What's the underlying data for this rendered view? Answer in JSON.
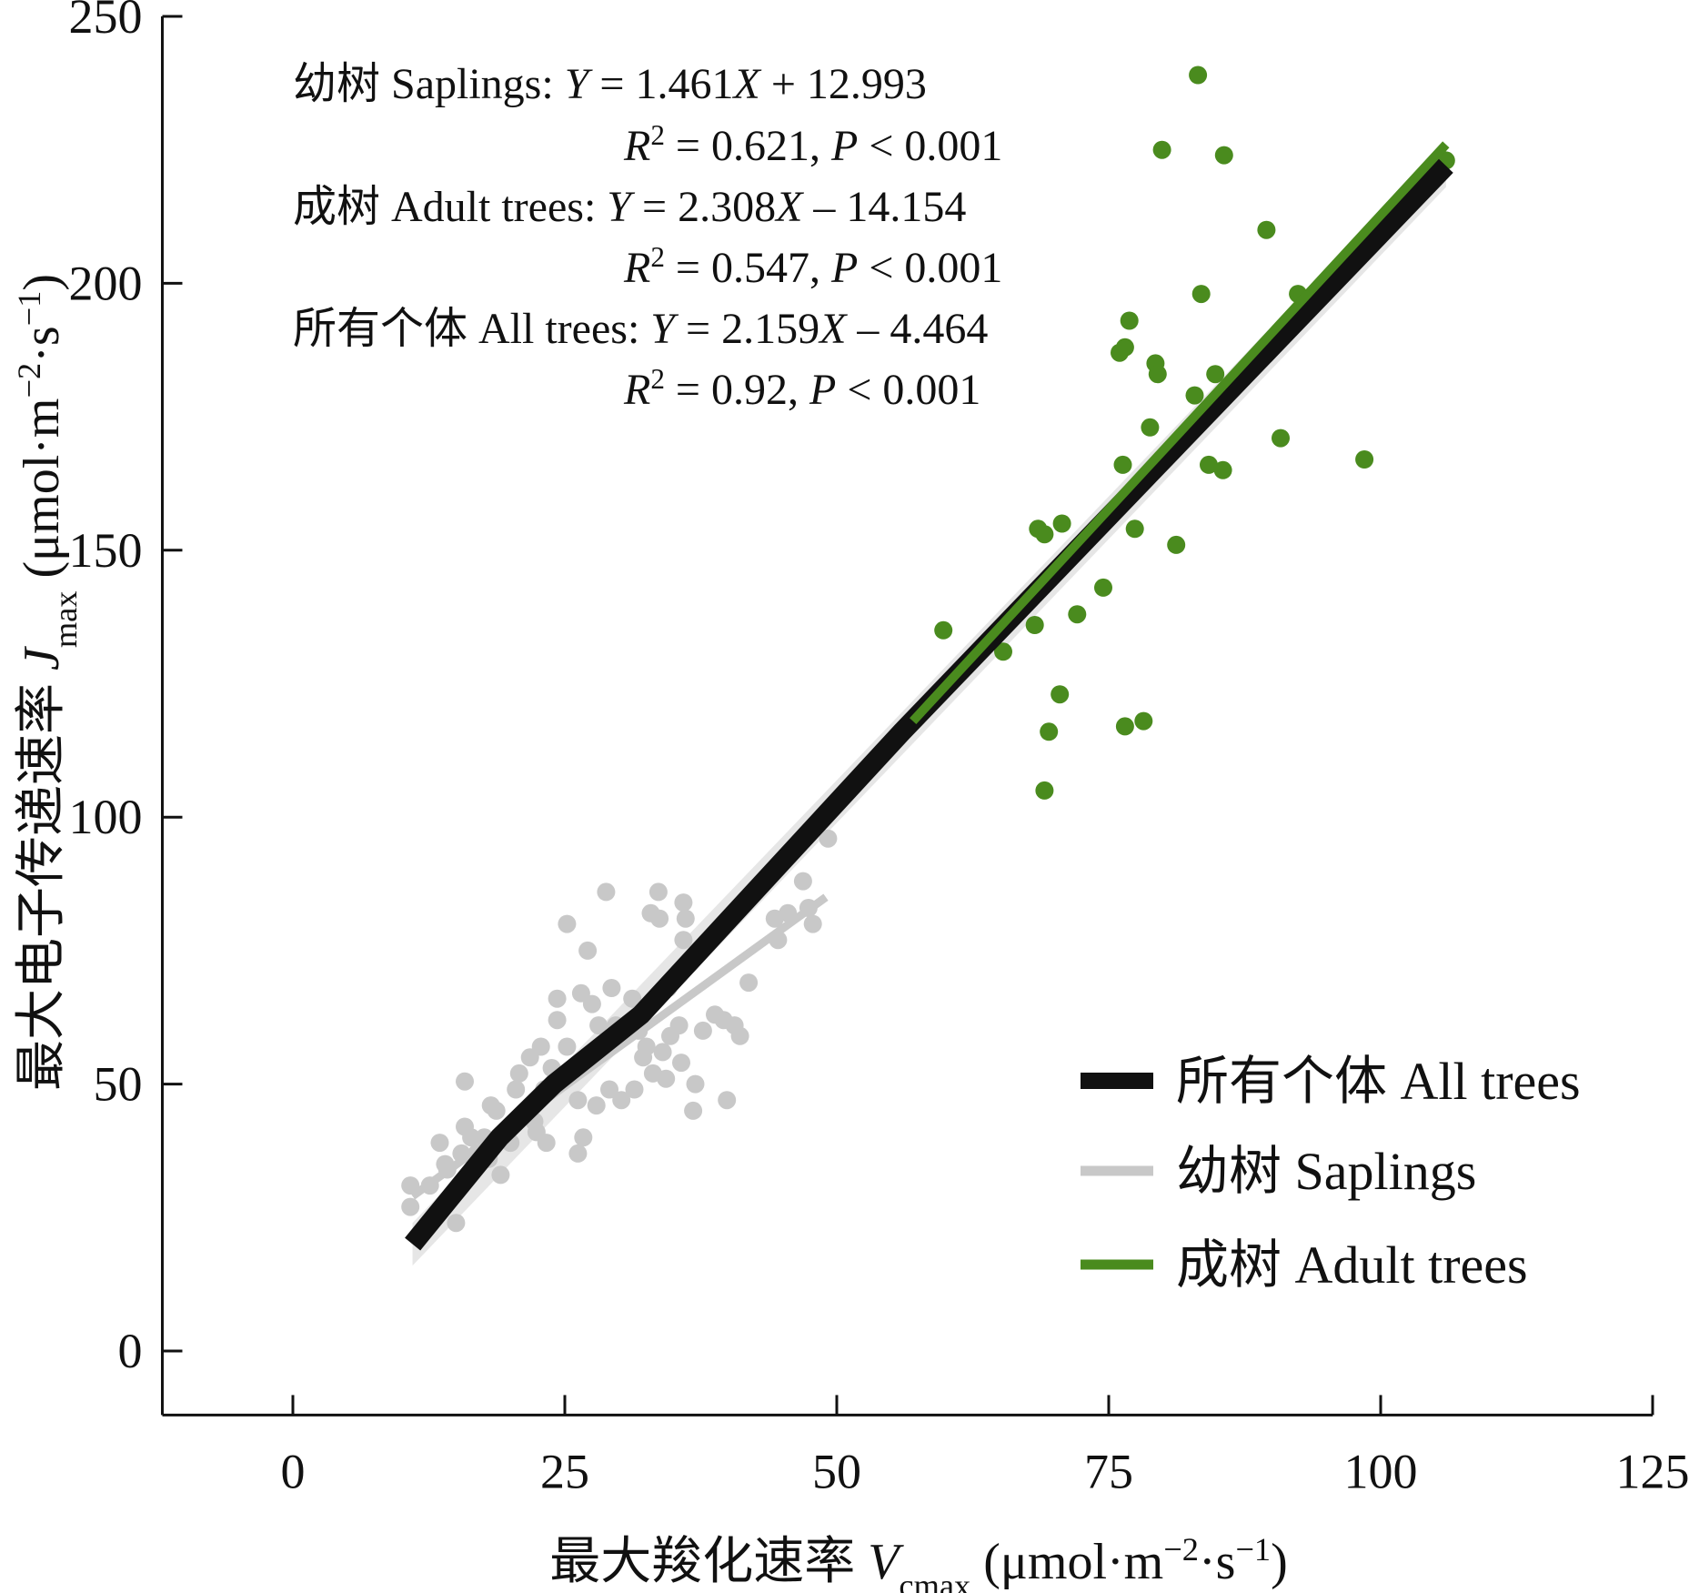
{
  "chart_data": {
    "type": "scatter",
    "xlabel": {
      "pre": "最大羧化速率 ",
      "var": "V",
      "sub": "cmax",
      "unit_open": " (μmol·m",
      "sup1": "−2",
      "mid": "·s",
      "sup2": "−1",
      "close": ")"
    },
    "ylabel": {
      "pre": "最大电子传递速率 ",
      "var": "J",
      "sub": "max",
      "unit_open": " (μmol·m",
      "sup1": "−2",
      "mid": "·s",
      "sup2": "−1",
      "close": ")"
    },
    "xlim": [
      -12,
      125
    ],
    "ylim": [
      -12,
      250
    ],
    "xticks": [
      0,
      25,
      50,
      75,
      100,
      125
    ],
    "yticks": [
      0,
      50,
      100,
      150,
      200,
      250
    ],
    "grid": false,
    "legend_position": "bottom-right",
    "colors": {
      "all": "#111111",
      "saplings": "#c8c8c8",
      "adult": "#4a8b1e"
    },
    "equations": [
      {
        "lines": [
          [
            {
              "t": "幼树 Saplings: "
            },
            {
              "t": "Y",
              "i": true
            },
            {
              "t": " = 1.461"
            },
            {
              "t": "X",
              "i": true
            },
            {
              "t": " + 12.993"
            }
          ],
          [
            {
              "t": "R",
              "i": true
            },
            {
              "t": "2",
              "sup": true
            },
            {
              "t": " = 0.621, "
            },
            {
              "t": "P",
              "i": true
            },
            {
              "t": " < 0.001"
            }
          ]
        ]
      },
      {
        "lines": [
          [
            {
              "t": "成树 Adult trees: "
            },
            {
              "t": "Y",
              "i": true
            },
            {
              "t": " = 2.308"
            },
            {
              "t": "X",
              "i": true
            },
            {
              "t": " – 14.154"
            }
          ],
          [
            {
              "t": "R",
              "i": true
            },
            {
              "t": "2",
              "sup": true
            },
            {
              "t": " = 0.547, "
            },
            {
              "t": "P",
              "i": true
            },
            {
              "t": " < 0.001"
            }
          ]
        ]
      },
      {
        "lines": [
          [
            {
              "t": "所有个体 All trees: "
            },
            {
              "t": "Y",
              "i": true
            },
            {
              "t": " = 2.159"
            },
            {
              "t": "X",
              "i": true
            },
            {
              "t": " – 4.464"
            }
          ],
          [
            {
              "t": "R",
              "i": true
            },
            {
              "t": "2",
              "sup": true
            },
            {
              "t": " = 0.92, "
            },
            {
              "t": "P",
              "i": true
            },
            {
              "t": " < 0.001"
            }
          ]
        ]
      }
    ],
    "legend": [
      "所有个体 All trees",
      "幼树 Saplings",
      "成树 Adult trees"
    ],
    "fits": [
      {
        "series": "all",
        "points": [
          [
            11,
            20
          ],
          [
            19,
            40
          ],
          [
            24,
            50
          ],
          [
            32,
            63
          ],
          [
            56,
            116
          ],
          [
            106,
            222
          ]
        ]
      },
      {
        "series": "saplings",
        "points": [
          [
            11,
            29
          ],
          [
            49,
            85
          ]
        ]
      },
      {
        "series": "adult",
        "points": [
          [
            57,
            118
          ],
          [
            106,
            226
          ]
        ]
      }
    ],
    "series": [
      {
        "key": "saplings",
        "points": [
          [
            10.8,
            31
          ],
          [
            10.8,
            27
          ],
          [
            12.6,
            31
          ],
          [
            13.5,
            39
          ],
          [
            14,
            35
          ],
          [
            14.2,
            34
          ],
          [
            15,
            24
          ],
          [
            15.5,
            37
          ],
          [
            15.8,
            42
          ],
          [
            15.8,
            50.5
          ],
          [
            16.4,
            40
          ],
          [
            16.9,
            37
          ],
          [
            17.6,
            40
          ],
          [
            18,
            36
          ],
          [
            18.2,
            46
          ],
          [
            18.7,
            45
          ],
          [
            19.1,
            33
          ],
          [
            20,
            39
          ],
          [
            20.5,
            49
          ],
          [
            20.8,
            52
          ],
          [
            21.2,
            44
          ],
          [
            21.8,
            55
          ],
          [
            22.2,
            43
          ],
          [
            22.4,
            41
          ],
          [
            22.8,
            57
          ],
          [
            23.1,
            49
          ],
          [
            23.3,
            39
          ],
          [
            23.8,
            53
          ],
          [
            24.3,
            66
          ],
          [
            24.3,
            62
          ],
          [
            25.2,
            80
          ],
          [
            25.2,
            57
          ],
          [
            25.8,
            53
          ],
          [
            26.2,
            47
          ],
          [
            26.2,
            37
          ],
          [
            26.5,
            67
          ],
          [
            26.7,
            40
          ],
          [
            27.1,
            75
          ],
          [
            27.5,
            65
          ],
          [
            27.9,
            46
          ],
          [
            28.1,
            61
          ],
          [
            28.8,
            86
          ],
          [
            29.1,
            49
          ],
          [
            29.3,
            68
          ],
          [
            29.7,
            61
          ],
          [
            30.2,
            47
          ],
          [
            31.2,
            66
          ],
          [
            31.4,
            49
          ],
          [
            31.8,
            60
          ],
          [
            32.2,
            55
          ],
          [
            32.5,
            57
          ],
          [
            32.9,
            82
          ],
          [
            33.1,
            52
          ],
          [
            33.6,
            86
          ],
          [
            33.7,
            81
          ],
          [
            34,
            56
          ],
          [
            34.3,
            51
          ],
          [
            34.5,
            68
          ],
          [
            34.7,
            59
          ],
          [
            35.5,
            61
          ],
          [
            35.7,
            54
          ],
          [
            35.9,
            84
          ],
          [
            35.9,
            77
          ],
          [
            36.1,
            81
          ],
          [
            36.8,
            45
          ],
          [
            37,
            50
          ],
          [
            37.7,
            60
          ],
          [
            38.8,
            63
          ],
          [
            39.6,
            62
          ],
          [
            39.9,
            47
          ],
          [
            40.6,
            61
          ],
          [
            41.1,
            59
          ],
          [
            41.9,
            69
          ],
          [
            44.3,
            81
          ],
          [
            44.6,
            77
          ],
          [
            45.5,
            82
          ],
          [
            46.9,
            88
          ],
          [
            47.4,
            83
          ],
          [
            47.8,
            80
          ],
          [
            49.2,
            96
          ]
        ]
      },
      {
        "key": "adult",
        "points": [
          [
            59.8,
            135
          ],
          [
            65.3,
            131
          ],
          [
            68.2,
            136
          ],
          [
            68.5,
            154
          ],
          [
            69.1,
            153
          ],
          [
            69.1,
            105
          ],
          [
            69.5,
            116
          ],
          [
            70.5,
            123
          ],
          [
            70.7,
            155
          ],
          [
            72.1,
            138
          ],
          [
            74.5,
            143
          ],
          [
            76,
            187
          ],
          [
            76.3,
            166
          ],
          [
            76.5,
            188
          ],
          [
            76.5,
            117
          ],
          [
            76.9,
            193
          ],
          [
            77.4,
            154
          ],
          [
            78.2,
            118
          ],
          [
            78.8,
            173
          ],
          [
            79.3,
            185
          ],
          [
            79.5,
            183
          ],
          [
            79.9,
            225
          ],
          [
            81.2,
            151
          ],
          [
            82.9,
            179
          ],
          [
            83.2,
            239
          ],
          [
            83.5,
            198
          ],
          [
            84.2,
            166
          ],
          [
            84.8,
            183
          ],
          [
            85.5,
            165
          ],
          [
            85.6,
            224
          ],
          [
            89.5,
            210
          ],
          [
            90.8,
            171
          ],
          [
            92.4,
            198
          ],
          [
            98.5,
            167
          ],
          [
            106,
            223
          ]
        ]
      }
    ]
  }
}
